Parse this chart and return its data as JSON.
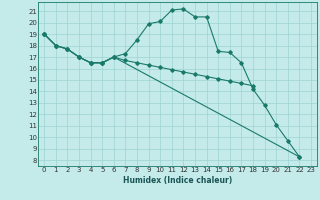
{
  "xlabel": "Humidex (Indice chaleur)",
  "line_color": "#1a7a6a",
  "bg_color": "#c5eaea",
  "grid_color": "#9dd4d4",
  "xlim": [
    -0.5,
    23.5
  ],
  "ylim": [
    7.5,
    21.8
  ],
  "yticks": [
    8,
    9,
    10,
    11,
    12,
    13,
    14,
    15,
    16,
    17,
    18,
    19,
    20,
    21
  ],
  "xticks": [
    0,
    1,
    2,
    3,
    4,
    5,
    6,
    7,
    8,
    9,
    10,
    11,
    12,
    13,
    14,
    15,
    16,
    17,
    18,
    19,
    20,
    21,
    22,
    23
  ],
  "s1x": [
    0,
    1,
    2,
    3,
    4,
    5,
    6,
    7,
    8,
    9,
    10,
    11,
    12,
    13,
    14,
    15,
    16,
    17,
    18,
    19,
    20,
    21,
    22
  ],
  "s1y": [
    19,
    18,
    17.7,
    17,
    16.5,
    16.5,
    17,
    17.3,
    18.5,
    19.9,
    20.1,
    21.1,
    21.2,
    20.5,
    20.5,
    17.5,
    17.4,
    16.5,
    14.2,
    12.8,
    11.1,
    9.7,
    8.3
  ],
  "s2x": [
    0,
    1,
    2,
    3,
    4,
    5,
    6,
    7,
    8,
    9,
    10,
    11,
    12,
    13,
    14,
    15,
    16,
    17,
    18
  ],
  "s2y": [
    19,
    18,
    17.7,
    17,
    16.5,
    16.5,
    17,
    16.7,
    16.5,
    16.3,
    16.1,
    15.9,
    15.7,
    15.5,
    15.3,
    15.1,
    14.9,
    14.7,
    14.5
  ],
  "s3x": [
    0,
    1,
    2,
    3,
    4,
    5,
    6,
    22
  ],
  "s3y": [
    19,
    18,
    17.7,
    17,
    16.5,
    16.5,
    17,
    8.3
  ]
}
